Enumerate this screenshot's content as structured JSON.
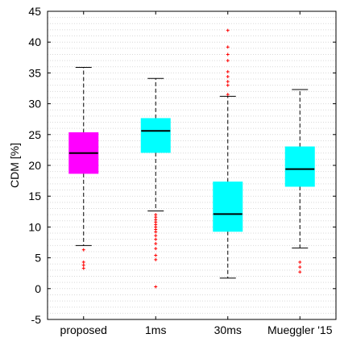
{
  "chart_data": {
    "type": "boxplot",
    "title": "",
    "xlabel": "",
    "ylabel": "CDM [%]",
    "ylim": [
      -5,
      45
    ],
    "yticks": [
      -5,
      0,
      5,
      10,
      15,
      20,
      25,
      30,
      35,
      40,
      45
    ],
    "ytick_labels": [
      "-5",
      "0",
      "5",
      "10",
      "15",
      "20",
      "25",
      "30",
      "35",
      "40",
      "45"
    ],
    "grid": true,
    "categories": [
      "proposed",
      "1ms",
      "30ms",
      "Mueggler '15"
    ],
    "boxes": [
      {
        "label": "proposed",
        "color": "#ff00ff",
        "q1": 18.7,
        "median": 22.0,
        "q3": 25.3,
        "whisker_low": 7.0,
        "whisker_high": 35.9,
        "outliers": [
          6.3,
          4.3,
          3.8,
          3.3
        ]
      },
      {
        "label": "1ms",
        "color": "#00ffff",
        "q1": 22.1,
        "median": 25.6,
        "q3": 27.6,
        "whisker_low": 12.6,
        "whisker_high": 34.1,
        "outliers": [
          12.0,
          11.6,
          11.2,
          10.8,
          10.4,
          10.0,
          9.6,
          9.2,
          8.6,
          8.0,
          7.3,
          6.5,
          5.4,
          4.7,
          0.3
        ]
      },
      {
        "label": "30ms",
        "color": "#00ffff",
        "q1": 9.3,
        "median": 12.1,
        "q3": 17.3,
        "whisker_low": 1.7,
        "whisker_high": 31.2,
        "outliers": [
          31.5,
          33.0,
          33.6,
          34.4,
          35.2,
          37.0,
          38.0,
          39.2,
          41.9
        ]
      },
      {
        "label": "Mueggler '15",
        "color": "#00ffff",
        "q1": 16.6,
        "median": 19.4,
        "q3": 23.0,
        "whisker_low": 6.6,
        "whisker_high": 32.3,
        "outliers": [
          4.3,
          3.5,
          2.7
        ]
      }
    ],
    "outlier_color": "#ff0000",
    "median_color": "#000000",
    "whisker_color": "#000000"
  }
}
